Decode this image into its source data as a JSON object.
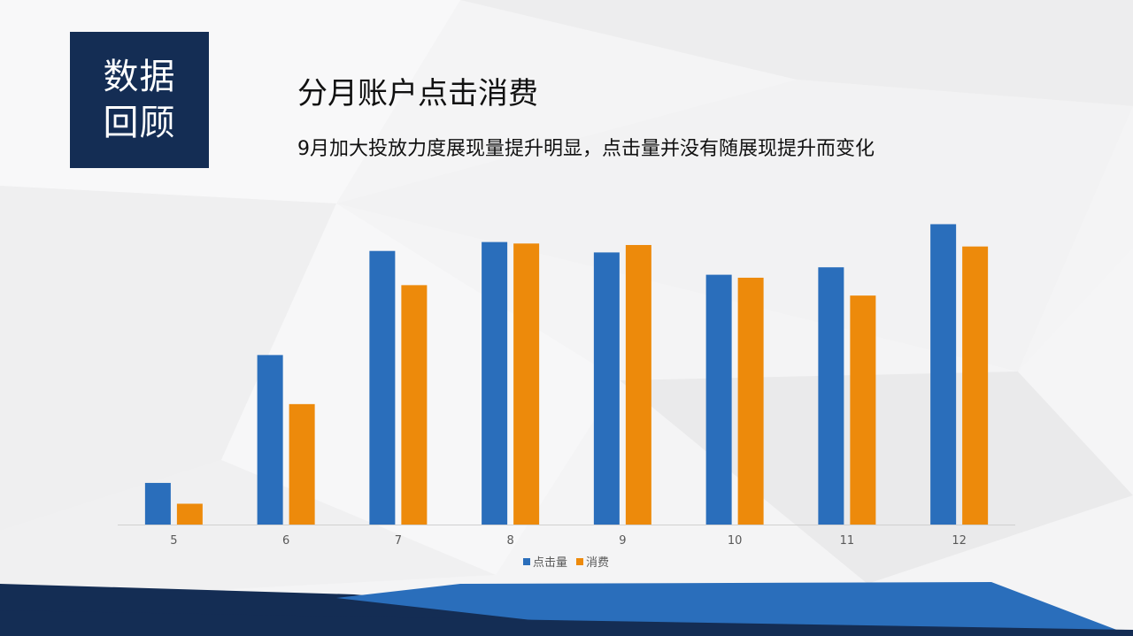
{
  "badge": {
    "line1": "数据",
    "line2": "回顾"
  },
  "header": {
    "title": "分月账户点击消费",
    "subtitle": "9月加大投放力度展现量提升明显，点击量并没有随展现提升而变化"
  },
  "colors": {
    "navy": "#142d54",
    "blue": "#2a6ebb",
    "orange": "#ed8a0b"
  },
  "chart_data": {
    "type": "bar",
    "categories": [
      "5",
      "6",
      "7",
      "8",
      "9",
      "10",
      "11",
      "12"
    ],
    "series": [
      {
        "name": "点击量",
        "color": "#2a6ebb",
        "values": [
          14,
          57,
          92,
          95,
          91.5,
          84,
          86.5,
          101
        ]
      },
      {
        "name": "消费",
        "color": "#ed8a0b",
        "values": [
          7,
          40.5,
          80.5,
          94.5,
          94,
          83,
          77,
          93.5
        ]
      }
    ],
    "ylim": [
      0,
      105
    ],
    "legend": "bottom",
    "grid": false
  }
}
